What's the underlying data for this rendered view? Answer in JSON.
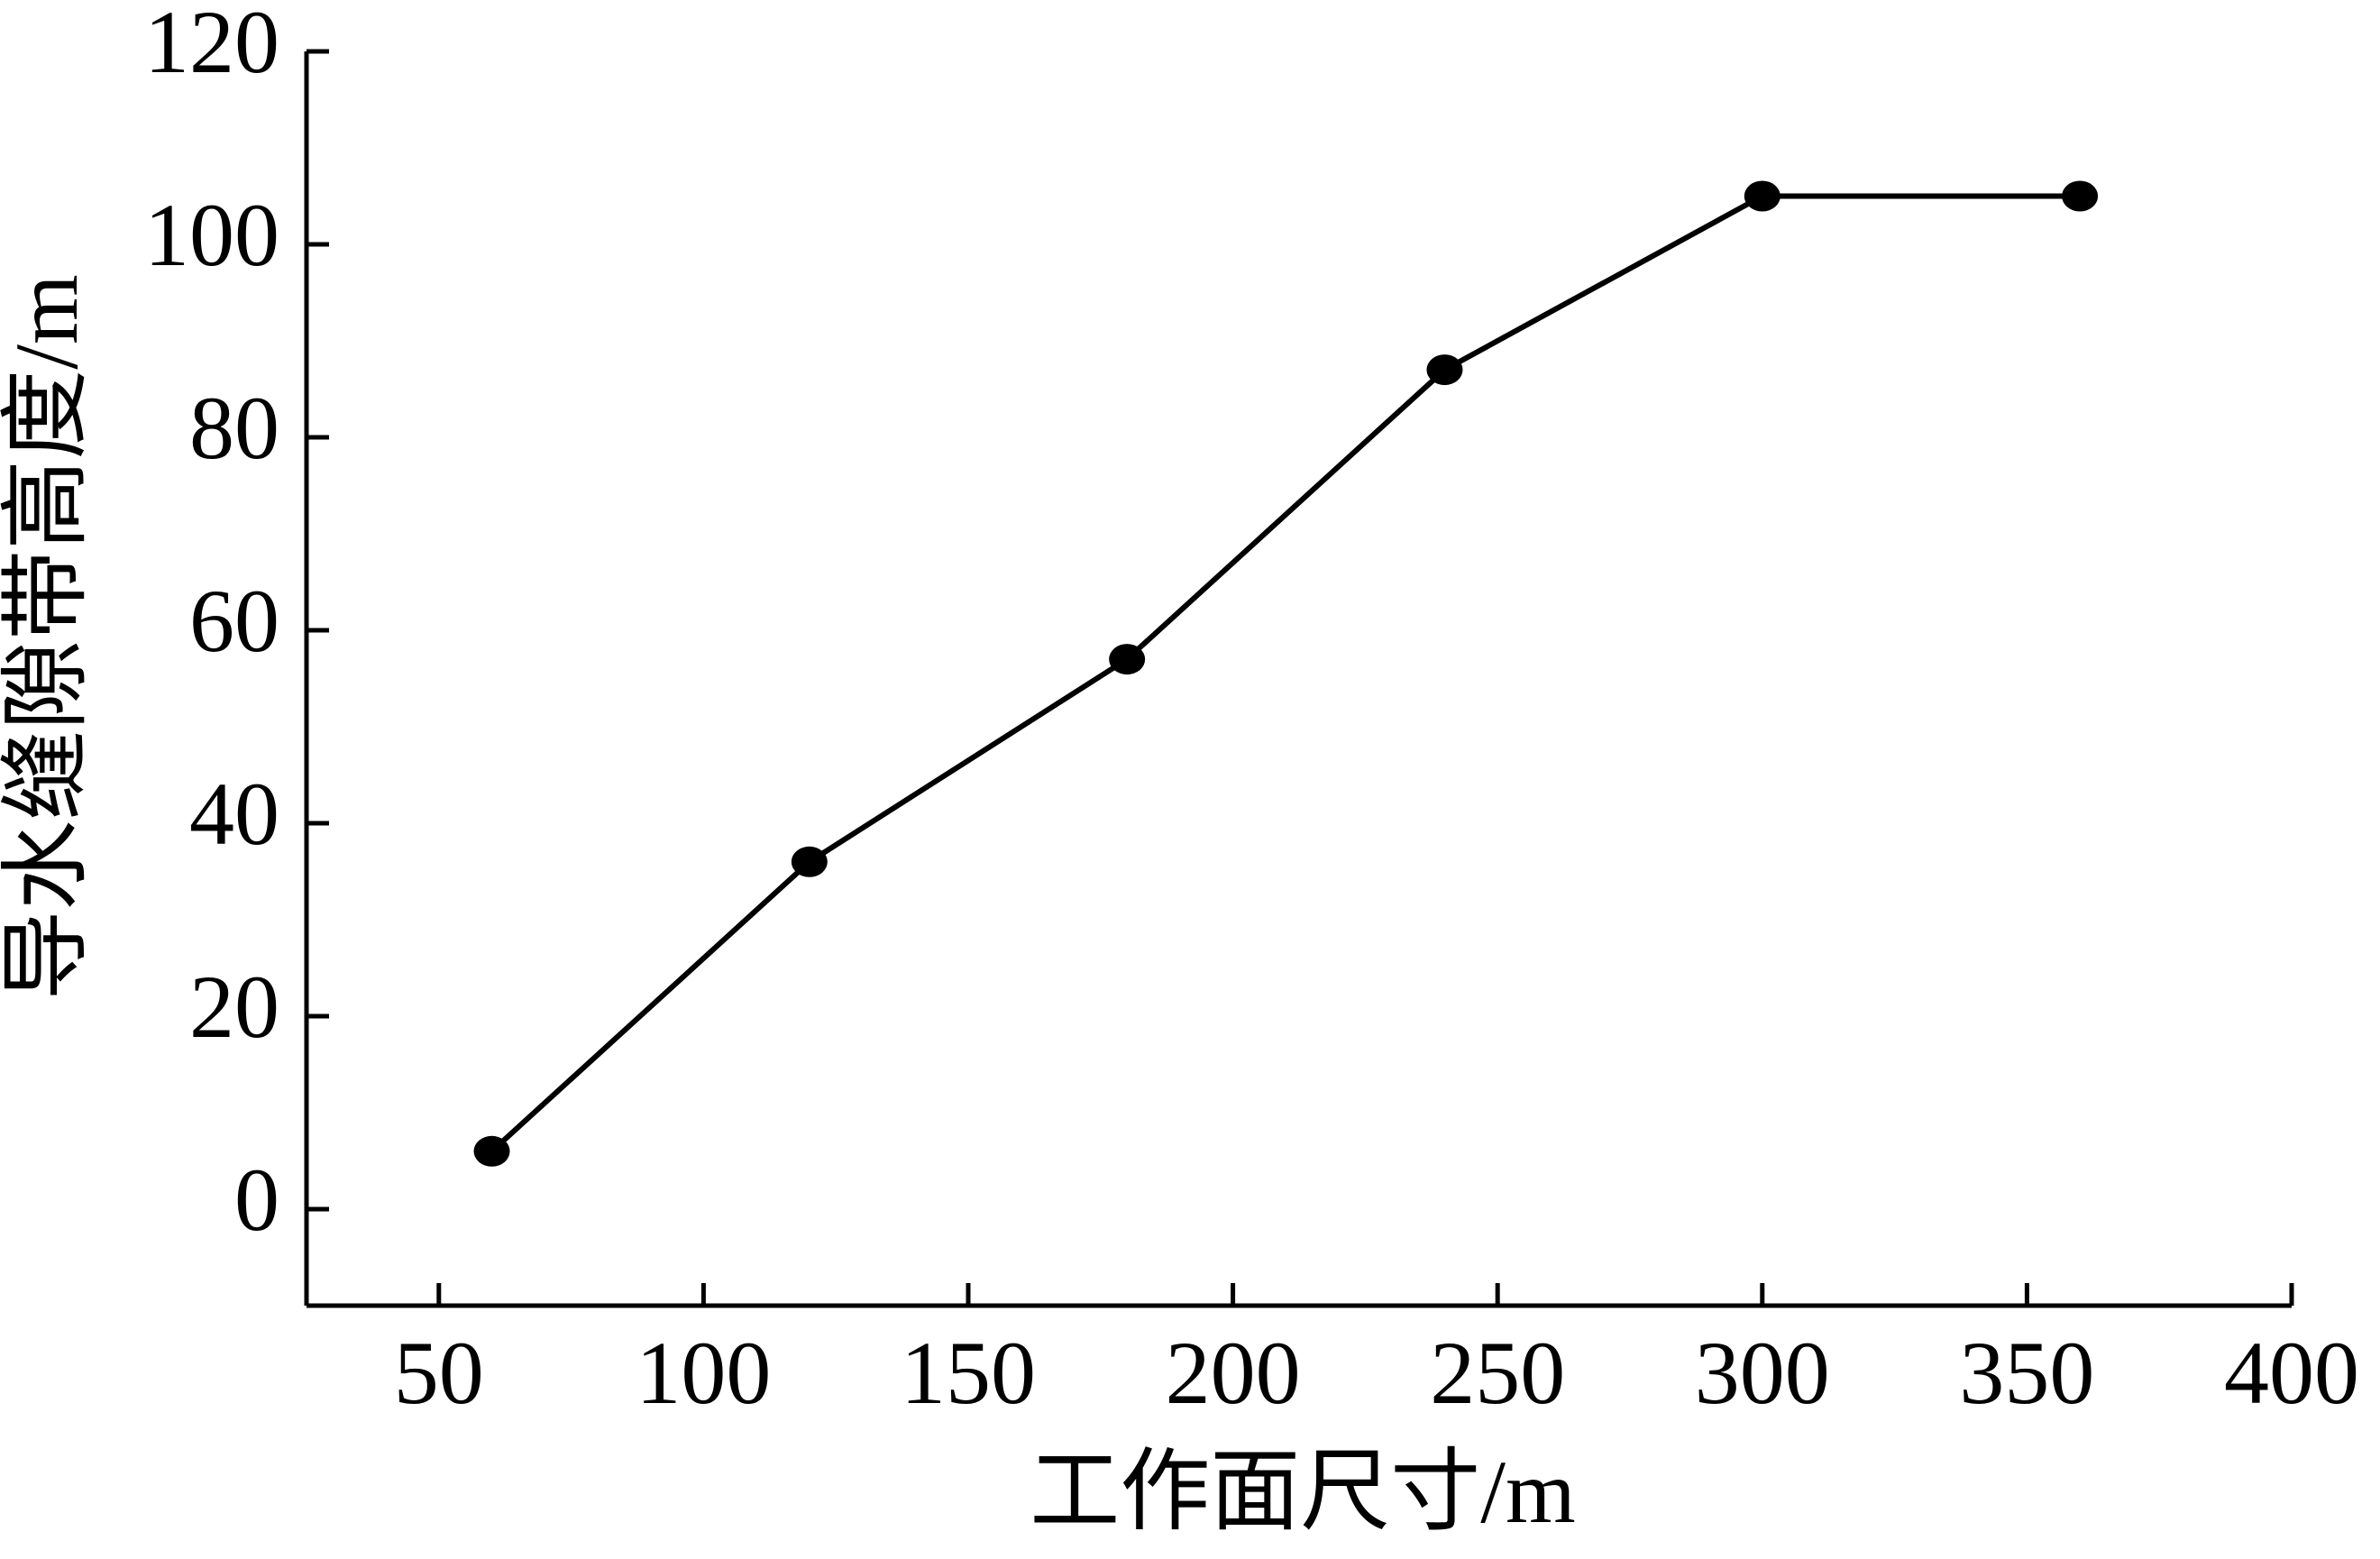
{
  "chart_data": {
    "type": "line",
    "x_label": "工作面尺寸/m",
    "y_label": "导水缝隙带高度/m",
    "x": [
      60,
      120,
      180,
      240,
      300,
      360
    ],
    "series": [
      {
        "name": "导水缝隙带高度",
        "color": "#000000",
        "values": [
          6,
          36,
          57,
          87,
          105,
          105
        ]
      }
    ],
    "xlim": [
      25,
      400
    ],
    "xticks": [
      50,
      100,
      150,
      200,
      250,
      300,
      350,
      400
    ],
    "ylim": [
      -10,
      120
    ],
    "yticks": [
      0,
      20,
      40,
      60,
      80,
      100,
      120
    ],
    "grid": false
  }
}
